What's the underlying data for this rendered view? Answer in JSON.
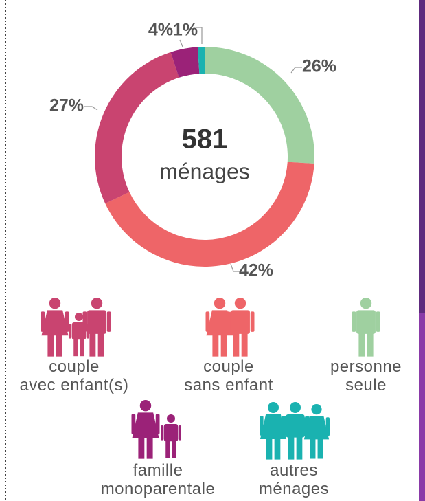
{
  "chart_data": {
    "type": "pie",
    "donut": true,
    "center_value": 581,
    "center_label": "ménages",
    "categories": [
      "personne\nseule",
      "couple\nsans enfant",
      "couple\navec enfant(s)",
      "famille\nmonoparentale",
      "autres\nménages"
    ],
    "values": [
      26,
      42,
      27,
      4,
      1
    ],
    "value_labels": [
      "26%",
      "42%",
      "27%",
      "4%",
      "1%"
    ],
    "colors": [
      "#9fd0a0",
      "#ee6568",
      "#c94470",
      "#9b2278",
      "#1ab2b0"
    ]
  }
}
